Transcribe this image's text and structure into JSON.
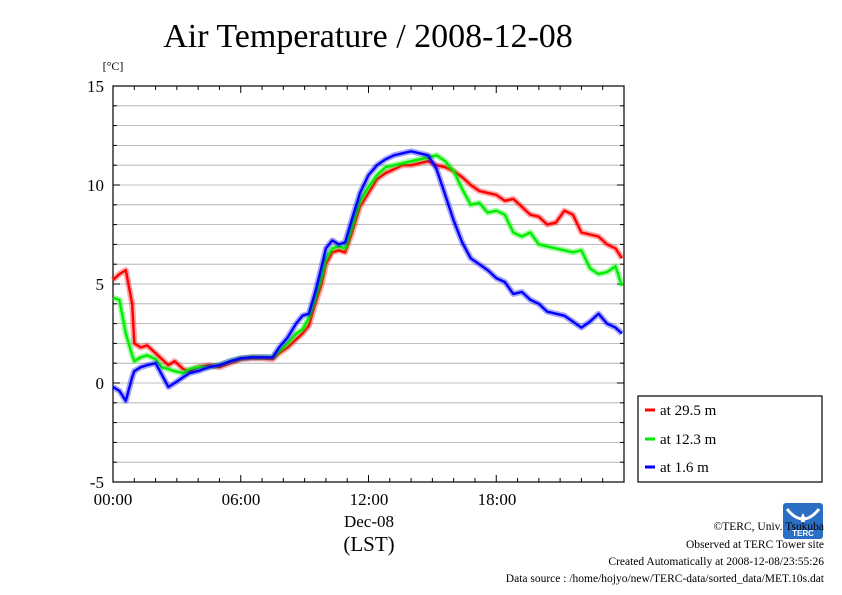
{
  "chart_data": {
    "type": "line",
    "title": "Air Temperature / 2008-12-08",
    "ylabel": "[°C]",
    "ylim": [
      -5,
      15
    ],
    "yticks": [
      "15",
      "10",
      "5",
      "0",
      "-5"
    ],
    "xlim": [
      0,
      24
    ],
    "xticks": [
      "00:00",
      "06:00",
      "12:00",
      "18:00"
    ],
    "date_label": "Dec-08",
    "time_zone_label": "(LST)",
    "grid": true,
    "legend_position": "bottom-right outside",
    "x_hours": [
      0,
      0.3,
      0.6,
      0.9,
      1.0,
      1.3,
      1.6,
      2.0,
      2.3,
      2.6,
      2.9,
      3.3,
      3.6,
      4.0,
      4.5,
      5.0,
      5.5,
      6.0,
      6.5,
      7.0,
      7.5,
      7.8,
      8.2,
      8.6,
      8.9,
      9.2,
      9.5,
      9.8,
      10.0,
      10.3,
      10.6,
      10.9,
      11.2,
      11.6,
      12.0,
      12.4,
      12.8,
      13.2,
      13.6,
      14.0,
      14.4,
      14.8,
      15.2,
      15.6,
      16.0,
      16.4,
      16.8,
      17.2,
      17.6,
      18.0,
      18.4,
      18.8,
      19.2,
      19.6,
      20.0,
      20.4,
      20.8,
      21.2,
      21.6,
      22.0,
      22.4,
      22.8,
      23.2,
      23.6,
      23.9
    ],
    "series": [
      {
        "name": "at 29.5 m",
        "color": "#ff0000",
        "values": [
          5.2,
          5.5,
          5.7,
          4.0,
          2.0,
          1.8,
          1.9,
          1.5,
          1.2,
          0.9,
          1.1,
          0.7,
          0.6,
          0.8,
          0.9,
          0.8,
          1.0,
          1.2,
          1.25,
          1.25,
          1.2,
          1.5,
          1.8,
          2.2,
          2.5,
          2.9,
          4.0,
          5.0,
          6.0,
          6.6,
          6.7,
          6.6,
          7.5,
          8.9,
          9.6,
          10.3,
          10.6,
          10.8,
          11.0,
          11.0,
          11.1,
          11.2,
          11.0,
          10.9,
          10.7,
          10.4,
          10.0,
          9.7,
          9.6,
          9.5,
          9.2,
          9.3,
          8.9,
          8.5,
          8.4,
          8.0,
          8.1,
          8.7,
          8.5,
          7.6,
          7.5,
          7.4,
          7.0,
          6.8,
          6.3
        ]
      },
      {
        "name": "at 12.3 m",
        "color": "#00ee00",
        "values": [
          4.3,
          4.2,
          2.5,
          1.4,
          1.1,
          1.3,
          1.4,
          1.2,
          0.8,
          0.7,
          0.6,
          0.5,
          0.7,
          0.8,
          0.8,
          0.9,
          1.1,
          1.25,
          1.3,
          1.3,
          1.3,
          1.6,
          2.0,
          2.5,
          2.7,
          3.3,
          4.3,
          5.4,
          6.3,
          6.8,
          6.9,
          6.8,
          7.8,
          9.2,
          9.9,
          10.5,
          10.9,
          11.0,
          11.1,
          11.2,
          11.3,
          11.4,
          11.5,
          11.2,
          10.7,
          9.8,
          9.0,
          9.1,
          8.6,
          8.7,
          8.5,
          7.6,
          7.4,
          7.6,
          7.0,
          6.9,
          6.8,
          6.7,
          6.6,
          6.7,
          5.8,
          5.5,
          5.6,
          5.9,
          4.9
        ]
      },
      {
        "name": "at 1.6 m",
        "color": "#0000ff",
        "values": [
          -0.2,
          -0.4,
          -0.9,
          0.3,
          0.6,
          0.8,
          0.9,
          1.0,
          0.4,
          -0.2,
          0.0,
          0.3,
          0.5,
          0.6,
          0.8,
          0.9,
          1.1,
          1.25,
          1.3,
          1.3,
          1.3,
          1.8,
          2.3,
          3.0,
          3.4,
          3.5,
          4.6,
          5.9,
          6.8,
          7.2,
          7.0,
          7.1,
          8.2,
          9.6,
          10.5,
          11.0,
          11.3,
          11.5,
          11.6,
          11.7,
          11.6,
          11.5,
          10.8,
          9.5,
          8.2,
          7.1,
          6.3,
          6.0,
          5.7,
          5.3,
          5.1,
          4.5,
          4.6,
          4.2,
          4.0,
          3.6,
          3.5,
          3.4,
          3.1,
          2.8,
          3.1,
          3.5,
          3.0,
          2.8,
          2.5
        ]
      }
    ]
  },
  "credits": {
    "copyright": "©TERC, Univ. Tsukuba",
    "observed": "Observed at TERC Tower site",
    "created": "Created Automatically at 2008-12-08/23:55:26",
    "source": "Data source : /home/hojyo/new/TERC-data/sorted_data/MET.10s.dat",
    "logo_text": "TERC"
  }
}
